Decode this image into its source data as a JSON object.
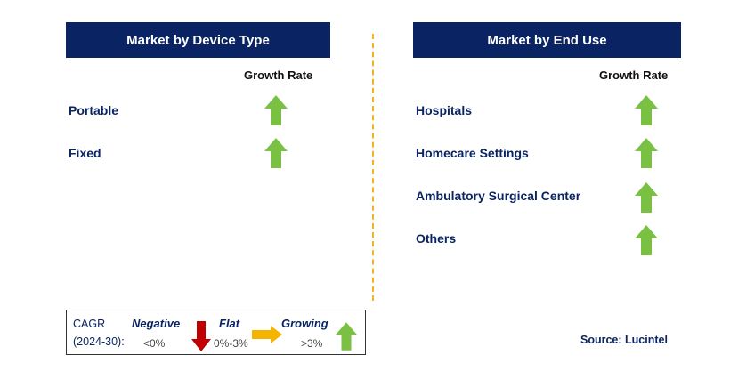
{
  "left_panel": {
    "title": "Market by Device Type",
    "growth_label": "Growth Rate",
    "items": [
      {
        "label": "Portable",
        "trend": "growing"
      },
      {
        "label": "Fixed",
        "trend": "growing"
      }
    ]
  },
  "right_panel": {
    "title": "Market by End Use",
    "growth_label": "Growth Rate",
    "items": [
      {
        "label": "Hospitals",
        "trend": "growing"
      },
      {
        "label": "Homecare Settings",
        "trend": "growing"
      },
      {
        "label": "Ambulatory Surgical Center",
        "trend": "growing"
      },
      {
        "label": "Others",
        "trend": "growing"
      }
    ]
  },
  "legend": {
    "cagr_line1": "CAGR",
    "cagr_line2": "(2024-30):",
    "negative_label": "Negative",
    "negative_range": "<0%",
    "flat_label": "Flat",
    "flat_range": "0%-3%",
    "growing_label": "Growing",
    "growing_range": ">3%"
  },
  "source": "Source: Lucintel",
  "colors": {
    "header_bg": "#0a2463",
    "growing": "#7ac143",
    "negative": "#c00000",
    "flat": "#f5b400",
    "divider": "#f0b323"
  }
}
